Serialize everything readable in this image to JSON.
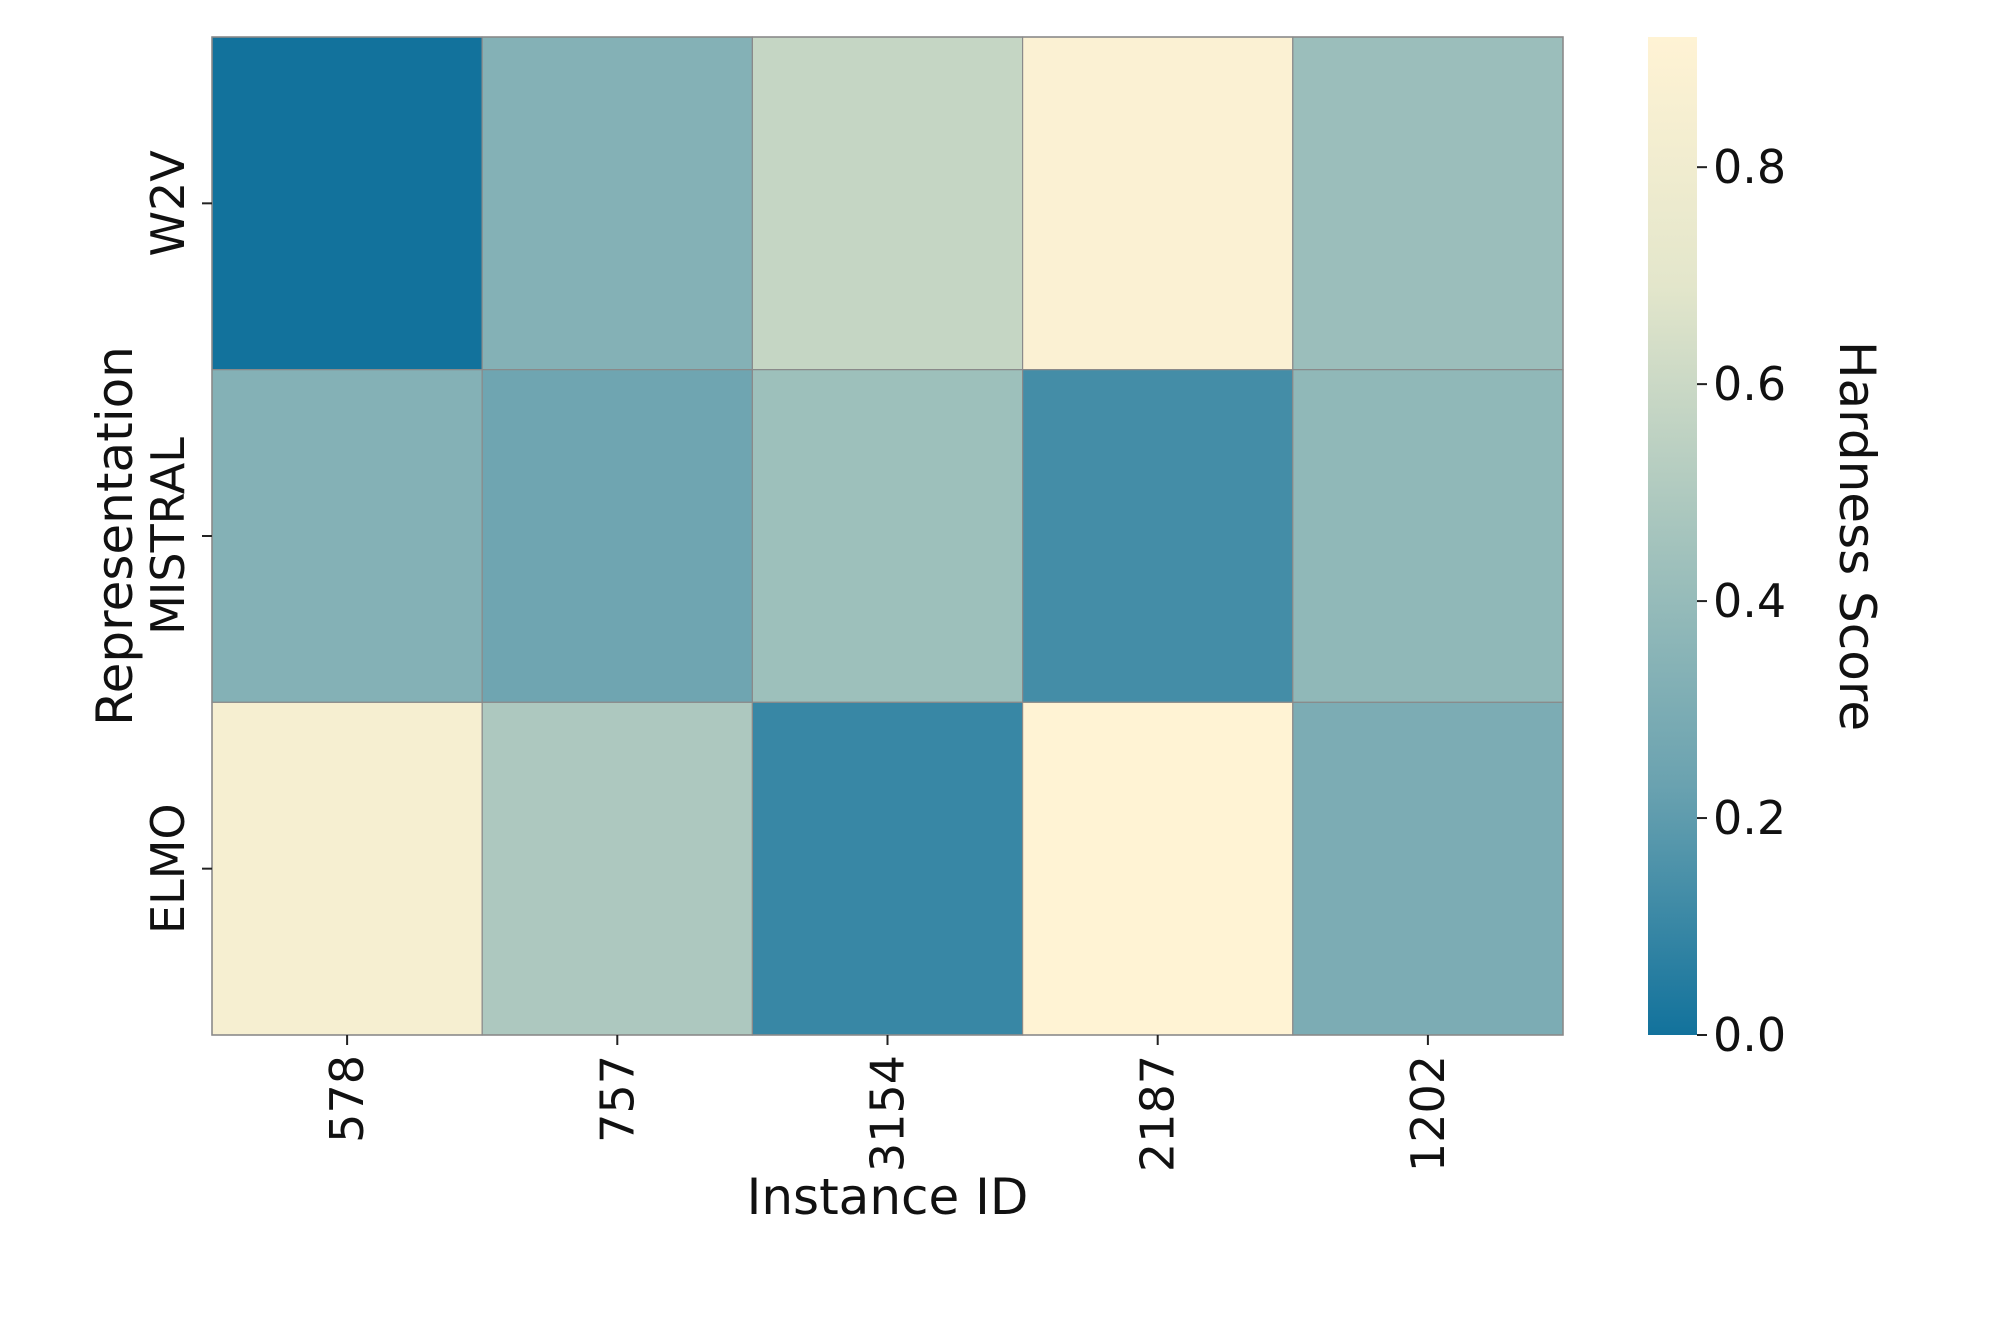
{
  "chart_data": {
    "type": "heatmap",
    "xlabel": "Instance ID",
    "ylabel": "Representation",
    "x_categories": [
      "578",
      "757",
      "3154",
      "2187",
      "1202"
    ],
    "y_categories": [
      "W2V",
      "MISTRAL",
      "ELMO"
    ],
    "values": [
      [
        0.0,
        0.33,
        0.58,
        0.89,
        0.42
      ],
      [
        0.33,
        0.25,
        0.43,
        0.13,
        0.38
      ],
      [
        0.85,
        0.49,
        0.1,
        0.92,
        0.3
      ]
    ],
    "colorbar": {
      "label": "Hardness Score",
      "range": [
        0.0,
        0.92
      ],
      "ticks": [
        "0.0",
        "0.2",
        "0.4",
        "0.6",
        "0.8"
      ],
      "colors": [
        "#12729c",
        "#6aa2b0",
        "#a5c4bd",
        "#e3e6cb",
        "#fff3d4"
      ]
    },
    "grid": false
  }
}
